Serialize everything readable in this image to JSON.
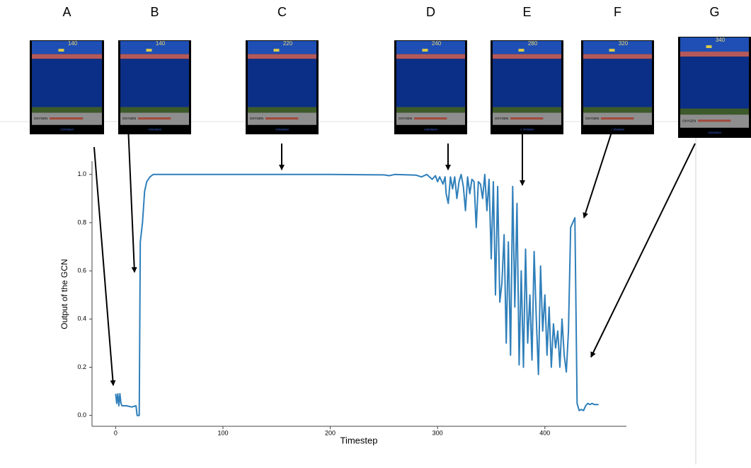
{
  "chart_data": {
    "type": "line",
    "x_label": "Timestep",
    "y_label": "Output of the GCN",
    "x": [
      0,
      1,
      2,
      3,
      4,
      5,
      6,
      10,
      15,
      19,
      20,
      22,
      23,
      25,
      27,
      29,
      32,
      35,
      100,
      200,
      250,
      255,
      260,
      280,
      285,
      290,
      295,
      298,
      300,
      302,
      305,
      307,
      308,
      310,
      312,
      314,
      316,
      318,
      320,
      322,
      324,
      326,
      328,
      330,
      332,
      334,
      336,
      338,
      340,
      342,
      344,
      346,
      348,
      350,
      352,
      354,
      356,
      358,
      360,
      362,
      364,
      366,
      368,
      370,
      372,
      374,
      376,
      378,
      380,
      382,
      384,
      386,
      388,
      390,
      392,
      394,
      396,
      398,
      400,
      402,
      404,
      406,
      408,
      410,
      412,
      414,
      416,
      418,
      420,
      422,
      424,
      426,
      428,
      430,
      432,
      434,
      436,
      438,
      440,
      442,
      444,
      446,
      450
    ],
    "values": [
      0.09,
      0.05,
      0.09,
      0.04,
      0.09,
      0.05,
      0.04,
      0.04,
      0.035,
      0.04,
      0.0,
      0.0,
      0.72,
      0.8,
      0.93,
      0.97,
      0.99,
      1.0,
      1.0,
      1.0,
      0.998,
      0.995,
      1.0,
      0.997,
      0.99,
      1.0,
      0.98,
      0.995,
      0.97,
      0.99,
      0.96,
      0.99,
      0.92,
      0.88,
      0.99,
      0.94,
      0.99,
      0.9,
      0.97,
      1.0,
      0.95,
      0.85,
      0.99,
      0.92,
      0.98,
      0.97,
      0.78,
      0.97,
      0.96,
      0.9,
      1.0,
      0.85,
      0.98,
      0.65,
      0.97,
      0.5,
      0.95,
      0.47,
      0.55,
      0.75,
      0.3,
      0.72,
      0.25,
      0.95,
      0.45,
      0.88,
      0.21,
      0.6,
      0.2,
      0.69,
      0.3,
      0.5,
      0.23,
      0.68,
      0.4,
      0.17,
      0.62,
      0.35,
      0.5,
      0.25,
      0.45,
      0.2,
      0.38,
      0.28,
      0.35,
      0.2,
      0.4,
      0.25,
      0.18,
      0.35,
      0.78,
      0.8,
      0.82,
      0.05,
      0.02,
      0.025,
      0.02,
      0.04,
      0.05,
      0.045,
      0.05,
      0.045,
      0.045
    ],
    "color": "#2f7fba",
    "xlim": [
      -22,
      476
    ],
    "ylim": [
      -0.045,
      1.055
    ],
    "xticks": [
      0,
      100,
      200,
      300,
      400
    ],
    "yticks": [
      {
        "value": 0,
        "label": "0.0"
      },
      0.2,
      0.4,
      0.6,
      0.8,
      {
        "value": 1,
        "label": "1.0"
      }
    ]
  },
  "panels": [
    {
      "letter": "A",
      "score": "140"
    },
    {
      "letter": "B",
      "score": "140"
    },
    {
      "letter": "C",
      "score": "220"
    },
    {
      "letter": "D",
      "score": "240"
    },
    {
      "letter": "E",
      "score": "280"
    },
    {
      "letter": "F",
      "score": "320"
    },
    {
      "letter": "G",
      "score": "340"
    }
  ],
  "oxygen_label": "OXYGEN",
  "logo": "Activision"
}
